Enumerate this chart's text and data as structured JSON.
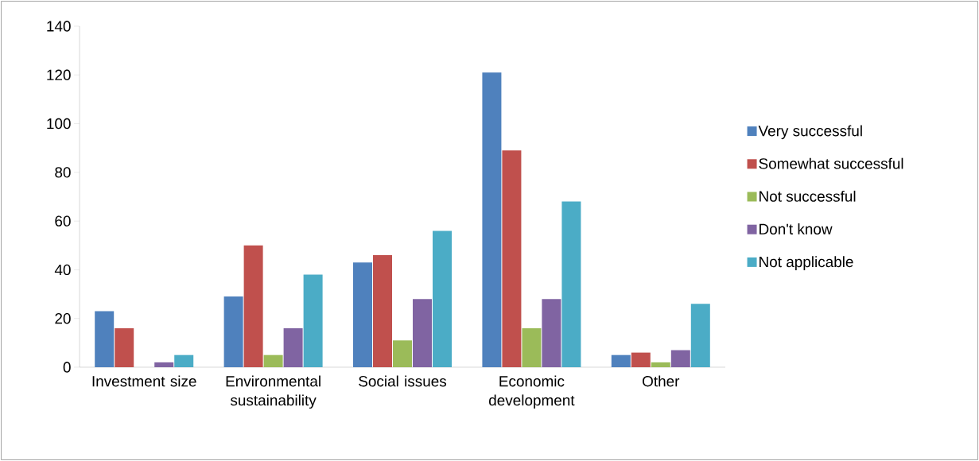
{
  "chart_data": {
    "type": "bar",
    "categories": [
      "Investment size",
      "Environmental sustainability",
      "Social issues",
      "Economic development",
      "Other"
    ],
    "series": [
      {
        "name": "Very successful",
        "color": "#4f81bd",
        "values": [
          23,
          29,
          43,
          121,
          5
        ]
      },
      {
        "name": "Somewhat successful",
        "color": "#c0504d",
        "values": [
          16,
          50,
          46,
          89,
          6
        ]
      },
      {
        "name": "Not successful",
        "color": "#9bbb59",
        "values": [
          0,
          5,
          11,
          16,
          2
        ]
      },
      {
        "name": "Don't know",
        "color": "#8064a2",
        "values": [
          2,
          16,
          28,
          28,
          7
        ]
      },
      {
        "name": "Not applicable",
        "color": "#4bacc6",
        "values": [
          5,
          38,
          56,
          68,
          26
        ]
      }
    ],
    "ylim": [
      0,
      140
    ],
    "yticks": [
      0,
      20,
      40,
      60,
      80,
      100,
      120,
      140
    ],
    "grid": false,
    "legend": "right"
  }
}
